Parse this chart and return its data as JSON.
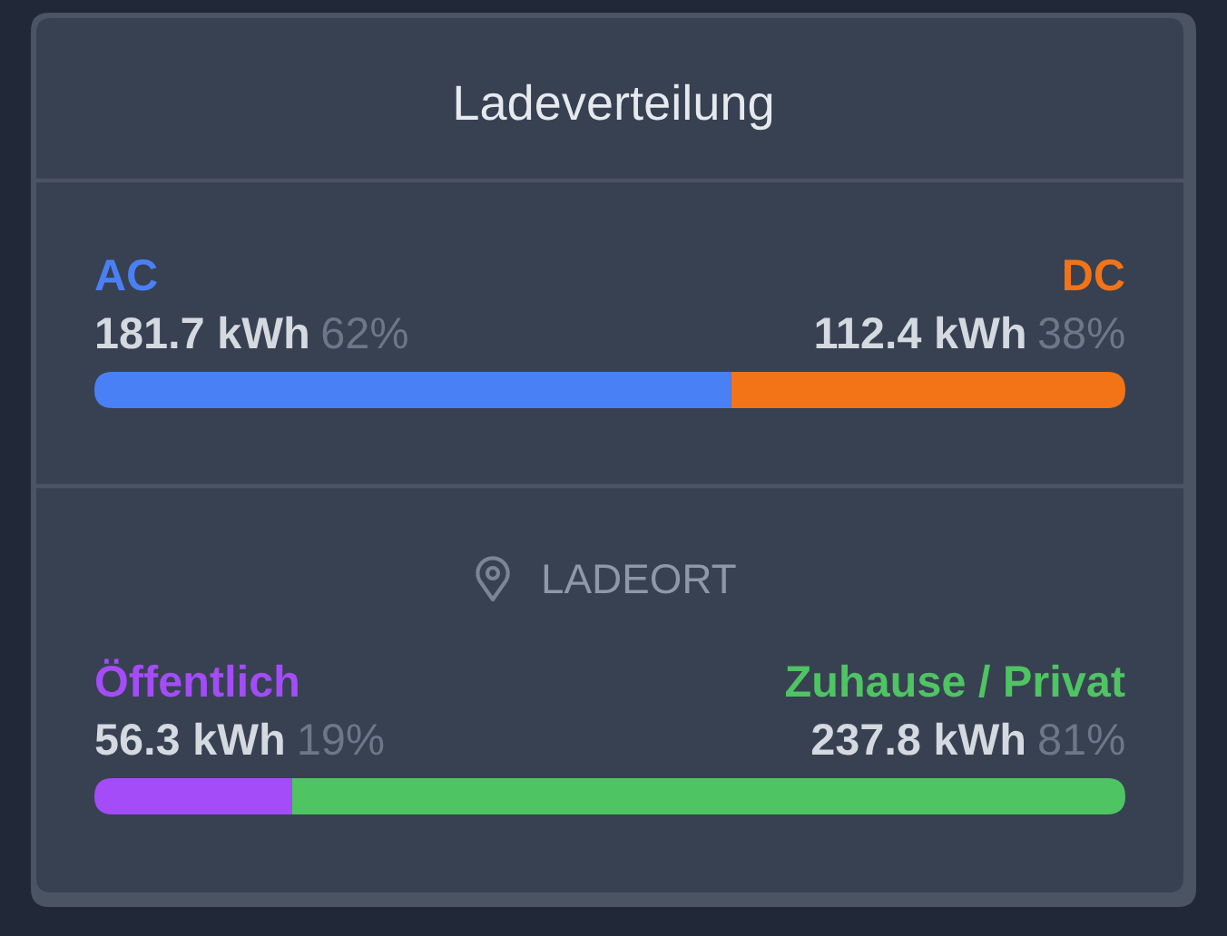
{
  "chart_data": [
    {
      "type": "bar",
      "title": "Ladeverteilung",
      "orientation": "horizontal",
      "stacked": true,
      "categories": [
        null
      ],
      "tick_labels": false,
      "series": [
        {
          "name": "AC",
          "color": "#4a80f6",
          "values": [
            181.7
          ],
          "value_labels": [
            "181.7 kWh 62%"
          ]
        },
        {
          "name": "DC",
          "color": "#f37417",
          "values": [
            112.4
          ],
          "value_labels": [
            "112.4 kWh 38%"
          ]
        }
      ]
    },
    {
      "type": "bar",
      "title": "LADEORT",
      "orientation": "horizontal",
      "stacked": true,
      "categories": [
        null
      ],
      "tick_labels": false,
      "series": [
        {
          "name": "Öffentlich",
          "color": "#a34cf8",
          "values": [
            56.3
          ],
          "value_labels": [
            "56.3 kWh 19%"
          ]
        },
        {
          "name": "Zuhause / Privat",
          "color": "#4ec462",
          "values": [
            237.8
          ],
          "value_labels": [
            "237.8 kWh 81%"
          ]
        }
      ]
    }
  ]
}
